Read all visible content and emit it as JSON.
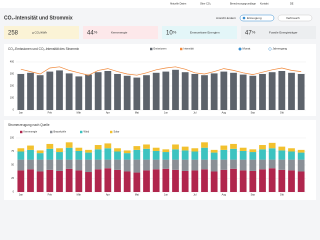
{
  "header": {
    "nav": [
      "Aktuelle Daten",
      "Über CO₂",
      "Berechnungsgrundlage",
      "Kontakt",
      "DE"
    ],
    "title": "CO₂-Intensität und Strommix",
    "view": "Ansicht ändern",
    "buttons": [
      "Erzeugung",
      "Verbrauch"
    ]
  },
  "kpis": [
    {
      "value": 258,
      "label": "g CO₂/kWh"
    },
    {
      "value": 44,
      "unit": "%",
      "label": "Kernenergie"
    },
    {
      "value": 10,
      "unit": "%",
      "label": "Erneuerbare Energien"
    },
    {
      "value": 47,
      "unit": "%",
      "label": "Fossile Energieträger"
    }
  ],
  "charts": [
    {
      "type": "bar-line",
      "title": "CO₂-Emissionen und CO₂-Intensität des Strommix",
      "legend": [
        "Monat",
        "Jahresgang"
      ],
      "categories": [
        "Jan",
        null,
        null,
        "Feb",
        null,
        null,
        "Mär",
        null,
        null,
        "Apr",
        null,
        null,
        "Mai",
        null,
        null,
        "Jun",
        null,
        null,
        "Jul",
        null,
        null,
        "Aug",
        null,
        null,
        "Sep",
        null,
        null,
        "Okt",
        null,
        null
      ],
      "series": [
        {
          "name": "Emissionen",
          "color": "#5d636b",
          "values": [
            300,
            310,
            290,
            320,
            330,
            305,
            280,
            295,
            315,
            325,
            300,
            285,
            270,
            290,
            310,
            320,
            335,
            315,
            300,
            290,
            305,
            320,
            310,
            295,
            285,
            300,
            315,
            325,
            310,
            300
          ]
        },
        {
          "name": "Intensität",
          "color": "#f0883a",
          "values": [
            340,
            320,
            300,
            350,
            360,
            330,
            310,
            290,
            330,
            345,
            320,
            300,
            290,
            310,
            335,
            350,
            360,
            340,
            310,
            300,
            320,
            345,
            330,
            310,
            295,
            315,
            335,
            350,
            330,
            320
          ]
        }
      ],
      "ylim": [
        0,
        400
      ],
      "yticks": [
        0,
        100,
        200,
        300,
        400
      ]
    },
    {
      "type": "stacked-bar",
      "title": "Stromerzeugung nach Quelle",
      "categories": [
        "Jan",
        null,
        null,
        "Feb",
        null,
        null,
        "Mär",
        null,
        null,
        "Apr",
        null,
        null,
        "Mai",
        null,
        null,
        "Jun",
        null,
        null,
        "Jul",
        null,
        null,
        "Aug",
        null,
        null,
        "Sep",
        null,
        null,
        "Okt",
        null,
        null
      ],
      "series": [
        {
          "name": "Kernenergie",
          "color": "#b0264d",
          "values": [
            40,
            42,
            38,
            41,
            39,
            43,
            40,
            37,
            42,
            44,
            41,
            38,
            36,
            40,
            42,
            43,
            41,
            39,
            40,
            42,
            38,
            41,
            43,
            40,
            39,
            42,
            44,
            41,
            40,
            38
          ]
        },
        {
          "name": "Braunkohle",
          "color": "#8a8f96",
          "values": [
            20,
            18,
            22,
            19,
            21,
            17,
            20,
            23,
            18,
            16,
            19,
            22,
            24,
            20,
            18,
            17,
            19,
            21,
            20,
            18,
            22,
            19,
            17,
            20,
            21,
            18,
            16,
            19,
            20,
            22
          ]
        },
        {
          "name": "Wind",
          "color": "#3cc3c0",
          "values": [
            15,
            18,
            12,
            20,
            14,
            22,
            16,
            13,
            19,
            21,
            15,
            12,
            18,
            20,
            16,
            14,
            19,
            17,
            15,
            22,
            13,
            18,
            20,
            16,
            14,
            19,
            21,
            17,
            15,
            13
          ]
        },
        {
          "name": "Solar",
          "color": "#f2c12e",
          "values": [
            6,
            8,
            5,
            9,
            7,
            10,
            6,
            5,
            8,
            9,
            6,
            5,
            7,
            8,
            6,
            5,
            9,
            7,
            6,
            10,
            5,
            8,
            9,
            6,
            5,
            8,
            10,
            7,
            6,
            5
          ]
        }
      ],
      "ylim": [
        0,
        100
      ],
      "yticks": [
        0,
        25,
        50,
        75,
        100
      ]
    }
  ]
}
